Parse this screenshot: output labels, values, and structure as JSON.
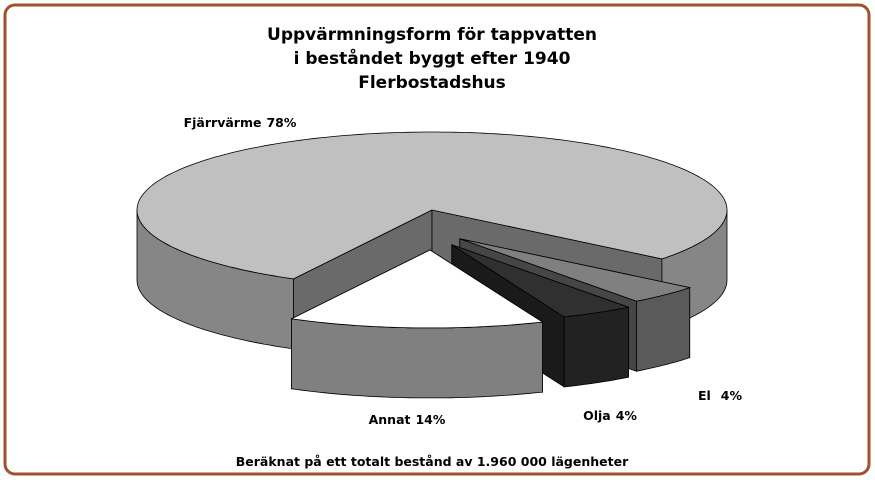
{
  "chart_data": {
    "type": "pie3d",
    "title": [
      "Uppvärmningsform för tappvatten",
      "i beståndet byggt efter 1940",
      "Flerbostadshus"
    ],
    "categories": [
      "Fjärrvärme",
      "El",
      "Olja",
      "Annat"
    ],
    "values": [
      78,
      4,
      4,
      14
    ],
    "value_labels": [
      "78%",
      "4%",
      "4%",
      "14%"
    ],
    "colors": [
      "#c0c0c0",
      "#808080",
      "#303030",
      "#ffffff"
    ],
    "note": "Beräknat på ett totalt bestånd av 1.960 000 lägenheter"
  }
}
